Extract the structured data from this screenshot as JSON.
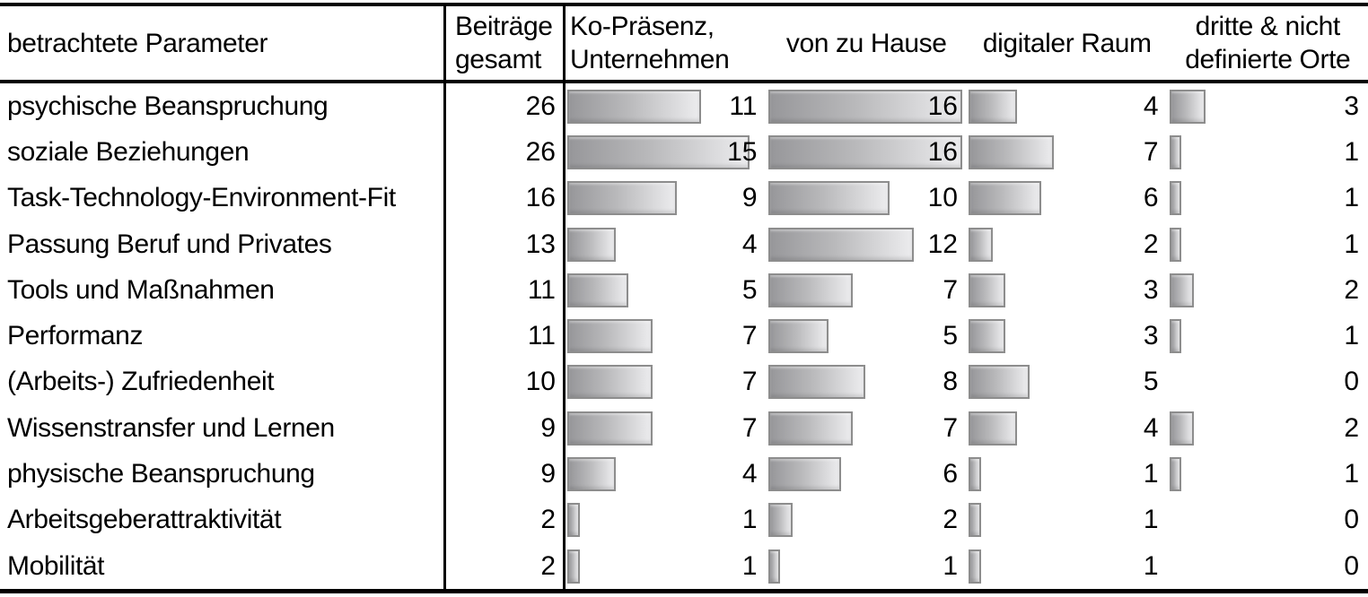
{
  "figure_title": "Tabelle: betrachtete Parameter nach Arbeitsorten",
  "colors": {
    "bar_gradient_start": "#97979a",
    "bar_gradient_end": "#ececee",
    "bar_border": "#8d8d8d",
    "rule_color": "#000000",
    "text_color": "#000000",
    "background": "#ffffff"
  },
  "table": {
    "bar_scale_max": 16,
    "columns": [
      {
        "key": "label",
        "header": "betrachtete Parameter"
      },
      {
        "key": "total",
        "header_lines": {
          "0": "Beiträge",
          "1": "gesamt"
        }
      },
      {
        "key": "ko",
        "header_lines": {
          "0": "Ko-Präsenz,",
          "1": "Unternehmen"
        }
      },
      {
        "key": "home",
        "header": "von zu Hause"
      },
      {
        "key": "digital",
        "header": "digitaler Raum"
      },
      {
        "key": "other",
        "header_lines": {
          "0": "dritte & nicht",
          "1": "definierte Orte"
        }
      }
    ],
    "rows": [
      {
        "label": "psychische Beanspruchung",
        "total": 26,
        "ko": 11,
        "home": 16,
        "digital": 4,
        "other": 3
      },
      {
        "label": "soziale Beziehungen",
        "total": 26,
        "ko": 15,
        "home": 16,
        "digital": 7,
        "other": 1
      },
      {
        "label": "Task-Technology-Environment-Fit",
        "total": 16,
        "ko": 9,
        "home": 10,
        "digital": 6,
        "other": 1
      },
      {
        "label": "Passung Beruf und Privates",
        "total": 13,
        "ko": 4,
        "home": 12,
        "digital": 2,
        "other": 1
      },
      {
        "label": "Tools und Maßnahmen",
        "total": 11,
        "ko": 5,
        "home": 7,
        "digital": 3,
        "other": 2
      },
      {
        "label": "Performanz",
        "total": 11,
        "ko": 7,
        "home": 5,
        "digital": 3,
        "other": 1
      },
      {
        "label": "(Arbeits-) Zufriedenheit",
        "total": 10,
        "ko": 7,
        "home": 8,
        "digital": 5,
        "other": 0
      },
      {
        "label": "Wissenstransfer und Lernen",
        "total": 9,
        "ko": 7,
        "home": 7,
        "digital": 4,
        "other": 2
      },
      {
        "label": "physische Beanspruchung",
        "total": 9,
        "ko": 4,
        "home": 6,
        "digital": 1,
        "other": 1
      },
      {
        "label": "Arbeitsgeberattraktivität",
        "total": 2,
        "ko": 1,
        "home": 2,
        "digital": 1,
        "other": 0
      },
      {
        "label": "Mobilität",
        "total": 2,
        "ko": 1,
        "home": 1,
        "digital": 1,
        "other": 0
      }
    ]
  },
  "chart_data": {
    "type": "bar",
    "orientation": "horizontal",
    "title": "betrachtete Parameter",
    "categories": [
      "psychische Beanspruchung",
      "soziale Beziehungen",
      "Task-Technology-Environment-Fit",
      "Passung Beruf und Privates",
      "Tools und Maßnahmen",
      "Performanz",
      "(Arbeits-) Zufriedenheit",
      "Wissenstransfer und Lernen",
      "physische Beanspruchung",
      "Arbeitsgeberattraktivität",
      "Mobilität"
    ],
    "series": [
      {
        "name": "Beiträge gesamt",
        "values": [
          26,
          26,
          16,
          13,
          11,
          11,
          10,
          9,
          9,
          2,
          2
        ],
        "shown_as": "numbers_only"
      },
      {
        "name": "Ko-Präsenz, Unternehmen",
        "values": [
          11,
          15,
          9,
          4,
          5,
          7,
          7,
          7,
          4,
          1,
          1
        ],
        "shown_as": "bar_with_number"
      },
      {
        "name": "von zu Hause",
        "values": [
          16,
          16,
          10,
          12,
          7,
          5,
          8,
          7,
          6,
          2,
          1
        ],
        "shown_as": "bar_with_number"
      },
      {
        "name": "digitaler Raum",
        "values": [
          4,
          7,
          6,
          2,
          3,
          3,
          5,
          4,
          1,
          1,
          1
        ],
        "shown_as": "bar_with_number"
      },
      {
        "name": "dritte & nicht definierte Orte",
        "values": [
          3,
          1,
          1,
          1,
          2,
          1,
          0,
          2,
          1,
          0,
          0
        ],
        "shown_as": "bar_with_number"
      }
    ],
    "value_range": [
      0,
      16
    ],
    "grid": false,
    "legend_position": "column-headers",
    "notes": "Table-embedded horizontal data bars; all bar columns share one scale where 16 equals full cell width; zero values show no bar."
  }
}
